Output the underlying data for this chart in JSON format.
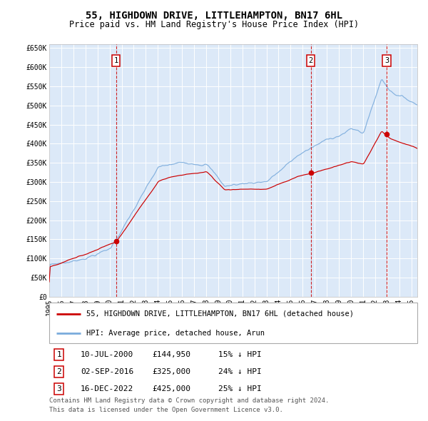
{
  "title": "55, HIGHDOWN DRIVE, LITTLEHAMPTON, BN17 6HL",
  "subtitle": "Price paid vs. HM Land Registry's House Price Index (HPI)",
  "legend_label_red": "55, HIGHDOWN DRIVE, LITTLEHAMPTON, BN17 6HL (detached house)",
  "legend_label_blue": "HPI: Average price, detached house, Arun",
  "transactions": [
    {
      "label": "1",
      "date": "10-JUL-2000",
      "price": 144950,
      "pct": "15%",
      "dir": "↓",
      "x": 2000.53
    },
    {
      "label": "2",
      "date": "02-SEP-2016",
      "price": 325000,
      "pct": "24%",
      "dir": "↓",
      "x": 2016.67
    },
    {
      "label": "3",
      "date": "16-DEC-2022",
      "price": 425000,
      "pct": "25%",
      "dir": "↓",
      "x": 2022.96
    }
  ],
  "footer_line1": "Contains HM Land Registry data © Crown copyright and database right 2024.",
  "footer_line2": "This data is licensed under the Open Government Licence v3.0.",
  "ylim": [
    0,
    660000
  ],
  "xlim": [
    1995,
    2025.5
  ],
  "yticks": [
    0,
    50000,
    100000,
    150000,
    200000,
    250000,
    300000,
    350000,
    400000,
    450000,
    500000,
    550000,
    600000,
    650000
  ],
  "ytick_labels": [
    "£0",
    "£50K",
    "£100K",
    "£150K",
    "£200K",
    "£250K",
    "£300K",
    "£350K",
    "£400K",
    "£450K",
    "£500K",
    "£550K",
    "£600K",
    "£650K"
  ],
  "xticks": [
    1995,
    1996,
    1997,
    1998,
    1999,
    2000,
    2001,
    2002,
    2003,
    2004,
    2005,
    2006,
    2007,
    2008,
    2009,
    2010,
    2011,
    2012,
    2013,
    2014,
    2015,
    2016,
    2017,
    2018,
    2019,
    2020,
    2021,
    2022,
    2023,
    2024,
    2025
  ],
  "bg_color": "#dce9f8",
  "red_color": "#cc0000",
  "blue_color": "#7aabdc",
  "grid_color": "#ffffff",
  "title_fontsize": 10,
  "subtitle_fontsize": 8.5,
  "axis_fontsize": 7,
  "legend_fontsize": 7.5,
  "footer_fontsize": 6.5,
  "table_fontsize": 8
}
